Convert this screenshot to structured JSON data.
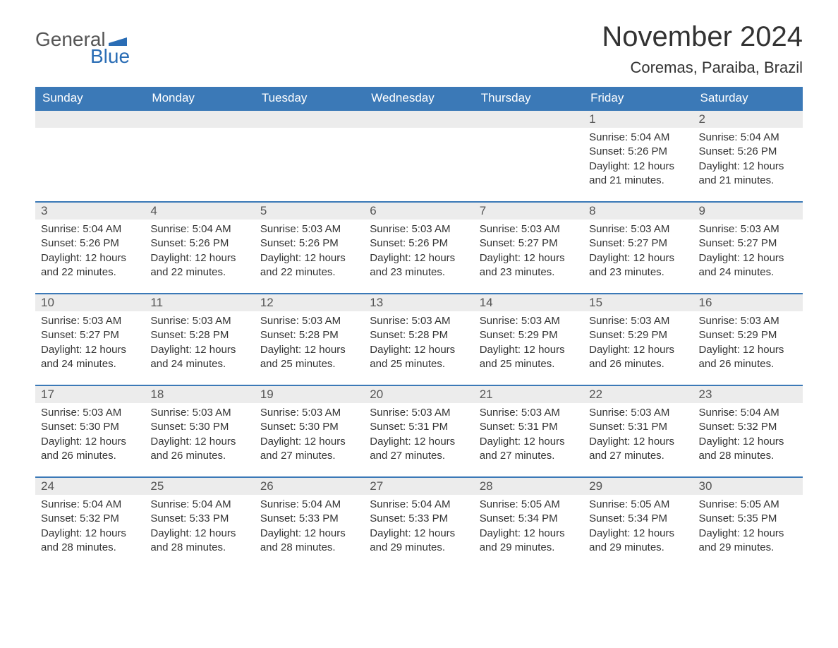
{
  "logo": {
    "text_general": "General",
    "text_blue": "Blue",
    "flag_color": "#2a6db5"
  },
  "header": {
    "month_title": "November 2024",
    "location": "Coremas, Paraiba, Brazil"
  },
  "styling": {
    "header_bg": "#3b79b7",
    "header_text": "#ffffff",
    "daynum_bg": "#ececec",
    "daynum_text": "#555555",
    "body_text": "#333333",
    "row_border": "#3b79b7",
    "page_bg": "#ffffff",
    "title_fontsize": 40,
    "location_fontsize": 22,
    "weekday_fontsize": 17,
    "body_fontsize": 15
  },
  "calendar": {
    "type": "table",
    "weekdays": [
      "Sunday",
      "Monday",
      "Tuesday",
      "Wednesday",
      "Thursday",
      "Friday",
      "Saturday"
    ],
    "weeks": [
      [
        {
          "day": "",
          "sunrise": "",
          "sunset": "",
          "daylight": ""
        },
        {
          "day": "",
          "sunrise": "",
          "sunset": "",
          "daylight": ""
        },
        {
          "day": "",
          "sunrise": "",
          "sunset": "",
          "daylight": ""
        },
        {
          "day": "",
          "sunrise": "",
          "sunset": "",
          "daylight": ""
        },
        {
          "day": "",
          "sunrise": "",
          "sunset": "",
          "daylight": ""
        },
        {
          "day": "1",
          "sunrise": "Sunrise: 5:04 AM",
          "sunset": "Sunset: 5:26 PM",
          "daylight": "Daylight: 12 hours and 21 minutes."
        },
        {
          "day": "2",
          "sunrise": "Sunrise: 5:04 AM",
          "sunset": "Sunset: 5:26 PM",
          "daylight": "Daylight: 12 hours and 21 minutes."
        }
      ],
      [
        {
          "day": "3",
          "sunrise": "Sunrise: 5:04 AM",
          "sunset": "Sunset: 5:26 PM",
          "daylight": "Daylight: 12 hours and 22 minutes."
        },
        {
          "day": "4",
          "sunrise": "Sunrise: 5:04 AM",
          "sunset": "Sunset: 5:26 PM",
          "daylight": "Daylight: 12 hours and 22 minutes."
        },
        {
          "day": "5",
          "sunrise": "Sunrise: 5:03 AM",
          "sunset": "Sunset: 5:26 PM",
          "daylight": "Daylight: 12 hours and 22 minutes."
        },
        {
          "day": "6",
          "sunrise": "Sunrise: 5:03 AM",
          "sunset": "Sunset: 5:26 PM",
          "daylight": "Daylight: 12 hours and 23 minutes."
        },
        {
          "day": "7",
          "sunrise": "Sunrise: 5:03 AM",
          "sunset": "Sunset: 5:27 PM",
          "daylight": "Daylight: 12 hours and 23 minutes."
        },
        {
          "day": "8",
          "sunrise": "Sunrise: 5:03 AM",
          "sunset": "Sunset: 5:27 PM",
          "daylight": "Daylight: 12 hours and 23 minutes."
        },
        {
          "day": "9",
          "sunrise": "Sunrise: 5:03 AM",
          "sunset": "Sunset: 5:27 PM",
          "daylight": "Daylight: 12 hours and 24 minutes."
        }
      ],
      [
        {
          "day": "10",
          "sunrise": "Sunrise: 5:03 AM",
          "sunset": "Sunset: 5:27 PM",
          "daylight": "Daylight: 12 hours and 24 minutes."
        },
        {
          "day": "11",
          "sunrise": "Sunrise: 5:03 AM",
          "sunset": "Sunset: 5:28 PM",
          "daylight": "Daylight: 12 hours and 24 minutes."
        },
        {
          "day": "12",
          "sunrise": "Sunrise: 5:03 AM",
          "sunset": "Sunset: 5:28 PM",
          "daylight": "Daylight: 12 hours and 25 minutes."
        },
        {
          "day": "13",
          "sunrise": "Sunrise: 5:03 AM",
          "sunset": "Sunset: 5:28 PM",
          "daylight": "Daylight: 12 hours and 25 minutes."
        },
        {
          "day": "14",
          "sunrise": "Sunrise: 5:03 AM",
          "sunset": "Sunset: 5:29 PM",
          "daylight": "Daylight: 12 hours and 25 minutes."
        },
        {
          "day": "15",
          "sunrise": "Sunrise: 5:03 AM",
          "sunset": "Sunset: 5:29 PM",
          "daylight": "Daylight: 12 hours and 26 minutes."
        },
        {
          "day": "16",
          "sunrise": "Sunrise: 5:03 AM",
          "sunset": "Sunset: 5:29 PM",
          "daylight": "Daylight: 12 hours and 26 minutes."
        }
      ],
      [
        {
          "day": "17",
          "sunrise": "Sunrise: 5:03 AM",
          "sunset": "Sunset: 5:30 PM",
          "daylight": "Daylight: 12 hours and 26 minutes."
        },
        {
          "day": "18",
          "sunrise": "Sunrise: 5:03 AM",
          "sunset": "Sunset: 5:30 PM",
          "daylight": "Daylight: 12 hours and 26 minutes."
        },
        {
          "day": "19",
          "sunrise": "Sunrise: 5:03 AM",
          "sunset": "Sunset: 5:30 PM",
          "daylight": "Daylight: 12 hours and 27 minutes."
        },
        {
          "day": "20",
          "sunrise": "Sunrise: 5:03 AM",
          "sunset": "Sunset: 5:31 PM",
          "daylight": "Daylight: 12 hours and 27 minutes."
        },
        {
          "day": "21",
          "sunrise": "Sunrise: 5:03 AM",
          "sunset": "Sunset: 5:31 PM",
          "daylight": "Daylight: 12 hours and 27 minutes."
        },
        {
          "day": "22",
          "sunrise": "Sunrise: 5:03 AM",
          "sunset": "Sunset: 5:31 PM",
          "daylight": "Daylight: 12 hours and 27 minutes."
        },
        {
          "day": "23",
          "sunrise": "Sunrise: 5:04 AM",
          "sunset": "Sunset: 5:32 PM",
          "daylight": "Daylight: 12 hours and 28 minutes."
        }
      ],
      [
        {
          "day": "24",
          "sunrise": "Sunrise: 5:04 AM",
          "sunset": "Sunset: 5:32 PM",
          "daylight": "Daylight: 12 hours and 28 minutes."
        },
        {
          "day": "25",
          "sunrise": "Sunrise: 5:04 AM",
          "sunset": "Sunset: 5:33 PM",
          "daylight": "Daylight: 12 hours and 28 minutes."
        },
        {
          "day": "26",
          "sunrise": "Sunrise: 5:04 AM",
          "sunset": "Sunset: 5:33 PM",
          "daylight": "Daylight: 12 hours and 28 minutes."
        },
        {
          "day": "27",
          "sunrise": "Sunrise: 5:04 AM",
          "sunset": "Sunset: 5:33 PM",
          "daylight": "Daylight: 12 hours and 29 minutes."
        },
        {
          "day": "28",
          "sunrise": "Sunrise: 5:05 AM",
          "sunset": "Sunset: 5:34 PM",
          "daylight": "Daylight: 12 hours and 29 minutes."
        },
        {
          "day": "29",
          "sunrise": "Sunrise: 5:05 AM",
          "sunset": "Sunset: 5:34 PM",
          "daylight": "Daylight: 12 hours and 29 minutes."
        },
        {
          "day": "30",
          "sunrise": "Sunrise: 5:05 AM",
          "sunset": "Sunset: 5:35 PM",
          "daylight": "Daylight: 12 hours and 29 minutes."
        }
      ]
    ]
  }
}
